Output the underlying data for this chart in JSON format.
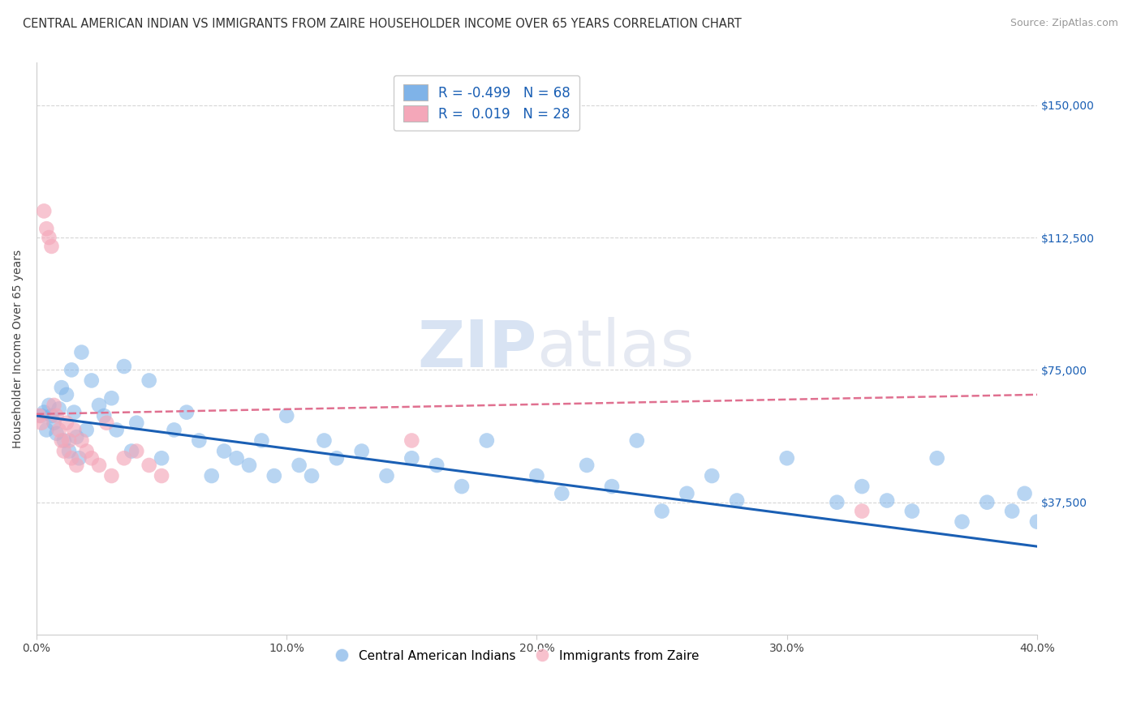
{
  "title": "CENTRAL AMERICAN INDIAN VS IMMIGRANTS FROM ZAIRE HOUSEHOLDER INCOME OVER 65 YEARS CORRELATION CHART",
  "source": "Source: ZipAtlas.com",
  "ylabel": "Householder Income Over 65 years",
  "xlim": [
    0.0,
    0.4
  ],
  "ylim": [
    0,
    162000
  ],
  "xtick_vals": [
    0.0,
    0.1,
    0.2,
    0.3,
    0.4
  ],
  "xtick_labels": [
    "0.0%",
    "10.0%",
    "20.0%",
    "30.0%",
    "40.0%"
  ],
  "right_ytick_vals": [
    37500,
    75000,
    112500,
    150000
  ],
  "right_ytick_labels": [
    "$37,500",
    "$75,000",
    "$112,500",
    "$150,000"
  ],
  "grid_color": "#cccccc",
  "bg_color": "#ffffff",
  "watermark_text": "ZIPatlas",
  "legend_R1": "-0.499",
  "legend_N1": "68",
  "legend_R2": "0.019",
  "legend_N2": "28",
  "blue_color": "#7fb3e8",
  "pink_color": "#f4a7b9",
  "blue_line_color": "#1a5fb4",
  "pink_line_color": "#e07090",
  "blue_x": [
    0.002,
    0.003,
    0.004,
    0.005,
    0.006,
    0.007,
    0.008,
    0.009,
    0.01,
    0.011,
    0.012,
    0.013,
    0.014,
    0.015,
    0.016,
    0.017,
    0.018,
    0.02,
    0.022,
    0.025,
    0.027,
    0.03,
    0.032,
    0.035,
    0.038,
    0.04,
    0.045,
    0.05,
    0.055,
    0.06,
    0.065,
    0.07,
    0.075,
    0.08,
    0.085,
    0.09,
    0.095,
    0.1,
    0.105,
    0.11,
    0.115,
    0.12,
    0.13,
    0.14,
    0.15,
    0.16,
    0.17,
    0.18,
    0.2,
    0.21,
    0.22,
    0.23,
    0.24,
    0.25,
    0.26,
    0.27,
    0.28,
    0.3,
    0.32,
    0.33,
    0.34,
    0.35,
    0.36,
    0.37,
    0.38,
    0.39,
    0.395,
    0.4
  ],
  "blue_y": [
    62000,
    63000,
    58000,
    65000,
    62000,
    60000,
    57000,
    64000,
    70000,
    55000,
    68000,
    52000,
    75000,
    63000,
    56000,
    50000,
    80000,
    58000,
    72000,
    65000,
    62000,
    67000,
    58000,
    76000,
    52000,
    60000,
    72000,
    50000,
    58000,
    63000,
    55000,
    45000,
    52000,
    50000,
    48000,
    55000,
    45000,
    62000,
    48000,
    45000,
    55000,
    50000,
    52000,
    45000,
    50000,
    48000,
    42000,
    55000,
    45000,
    40000,
    48000,
    42000,
    55000,
    35000,
    40000,
    45000,
    38000,
    50000,
    37500,
    42000,
    38000,
    35000,
    50000,
    32000,
    37500,
    35000,
    40000,
    32000
  ],
  "pink_x": [
    0.001,
    0.002,
    0.003,
    0.004,
    0.005,
    0.006,
    0.007,
    0.008,
    0.009,
    0.01,
    0.011,
    0.012,
    0.013,
    0.014,
    0.015,
    0.016,
    0.018,
    0.02,
    0.022,
    0.025,
    0.028,
    0.03,
    0.035,
    0.04,
    0.045,
    0.05,
    0.15,
    0.33
  ],
  "pink_y": [
    62000,
    60000,
    120000,
    115000,
    112500,
    110000,
    65000,
    62000,
    58000,
    55000,
    52000,
    60000,
    55000,
    50000,
    58000,
    48000,
    55000,
    52000,
    50000,
    48000,
    60000,
    45000,
    50000,
    52000,
    48000,
    45000,
    55000,
    35000
  ],
  "title_fontsize": 10.5,
  "source_fontsize": 9,
  "ylabel_fontsize": 10,
  "tick_fontsize": 10,
  "legend_fontsize": 12,
  "dot_size": 180
}
